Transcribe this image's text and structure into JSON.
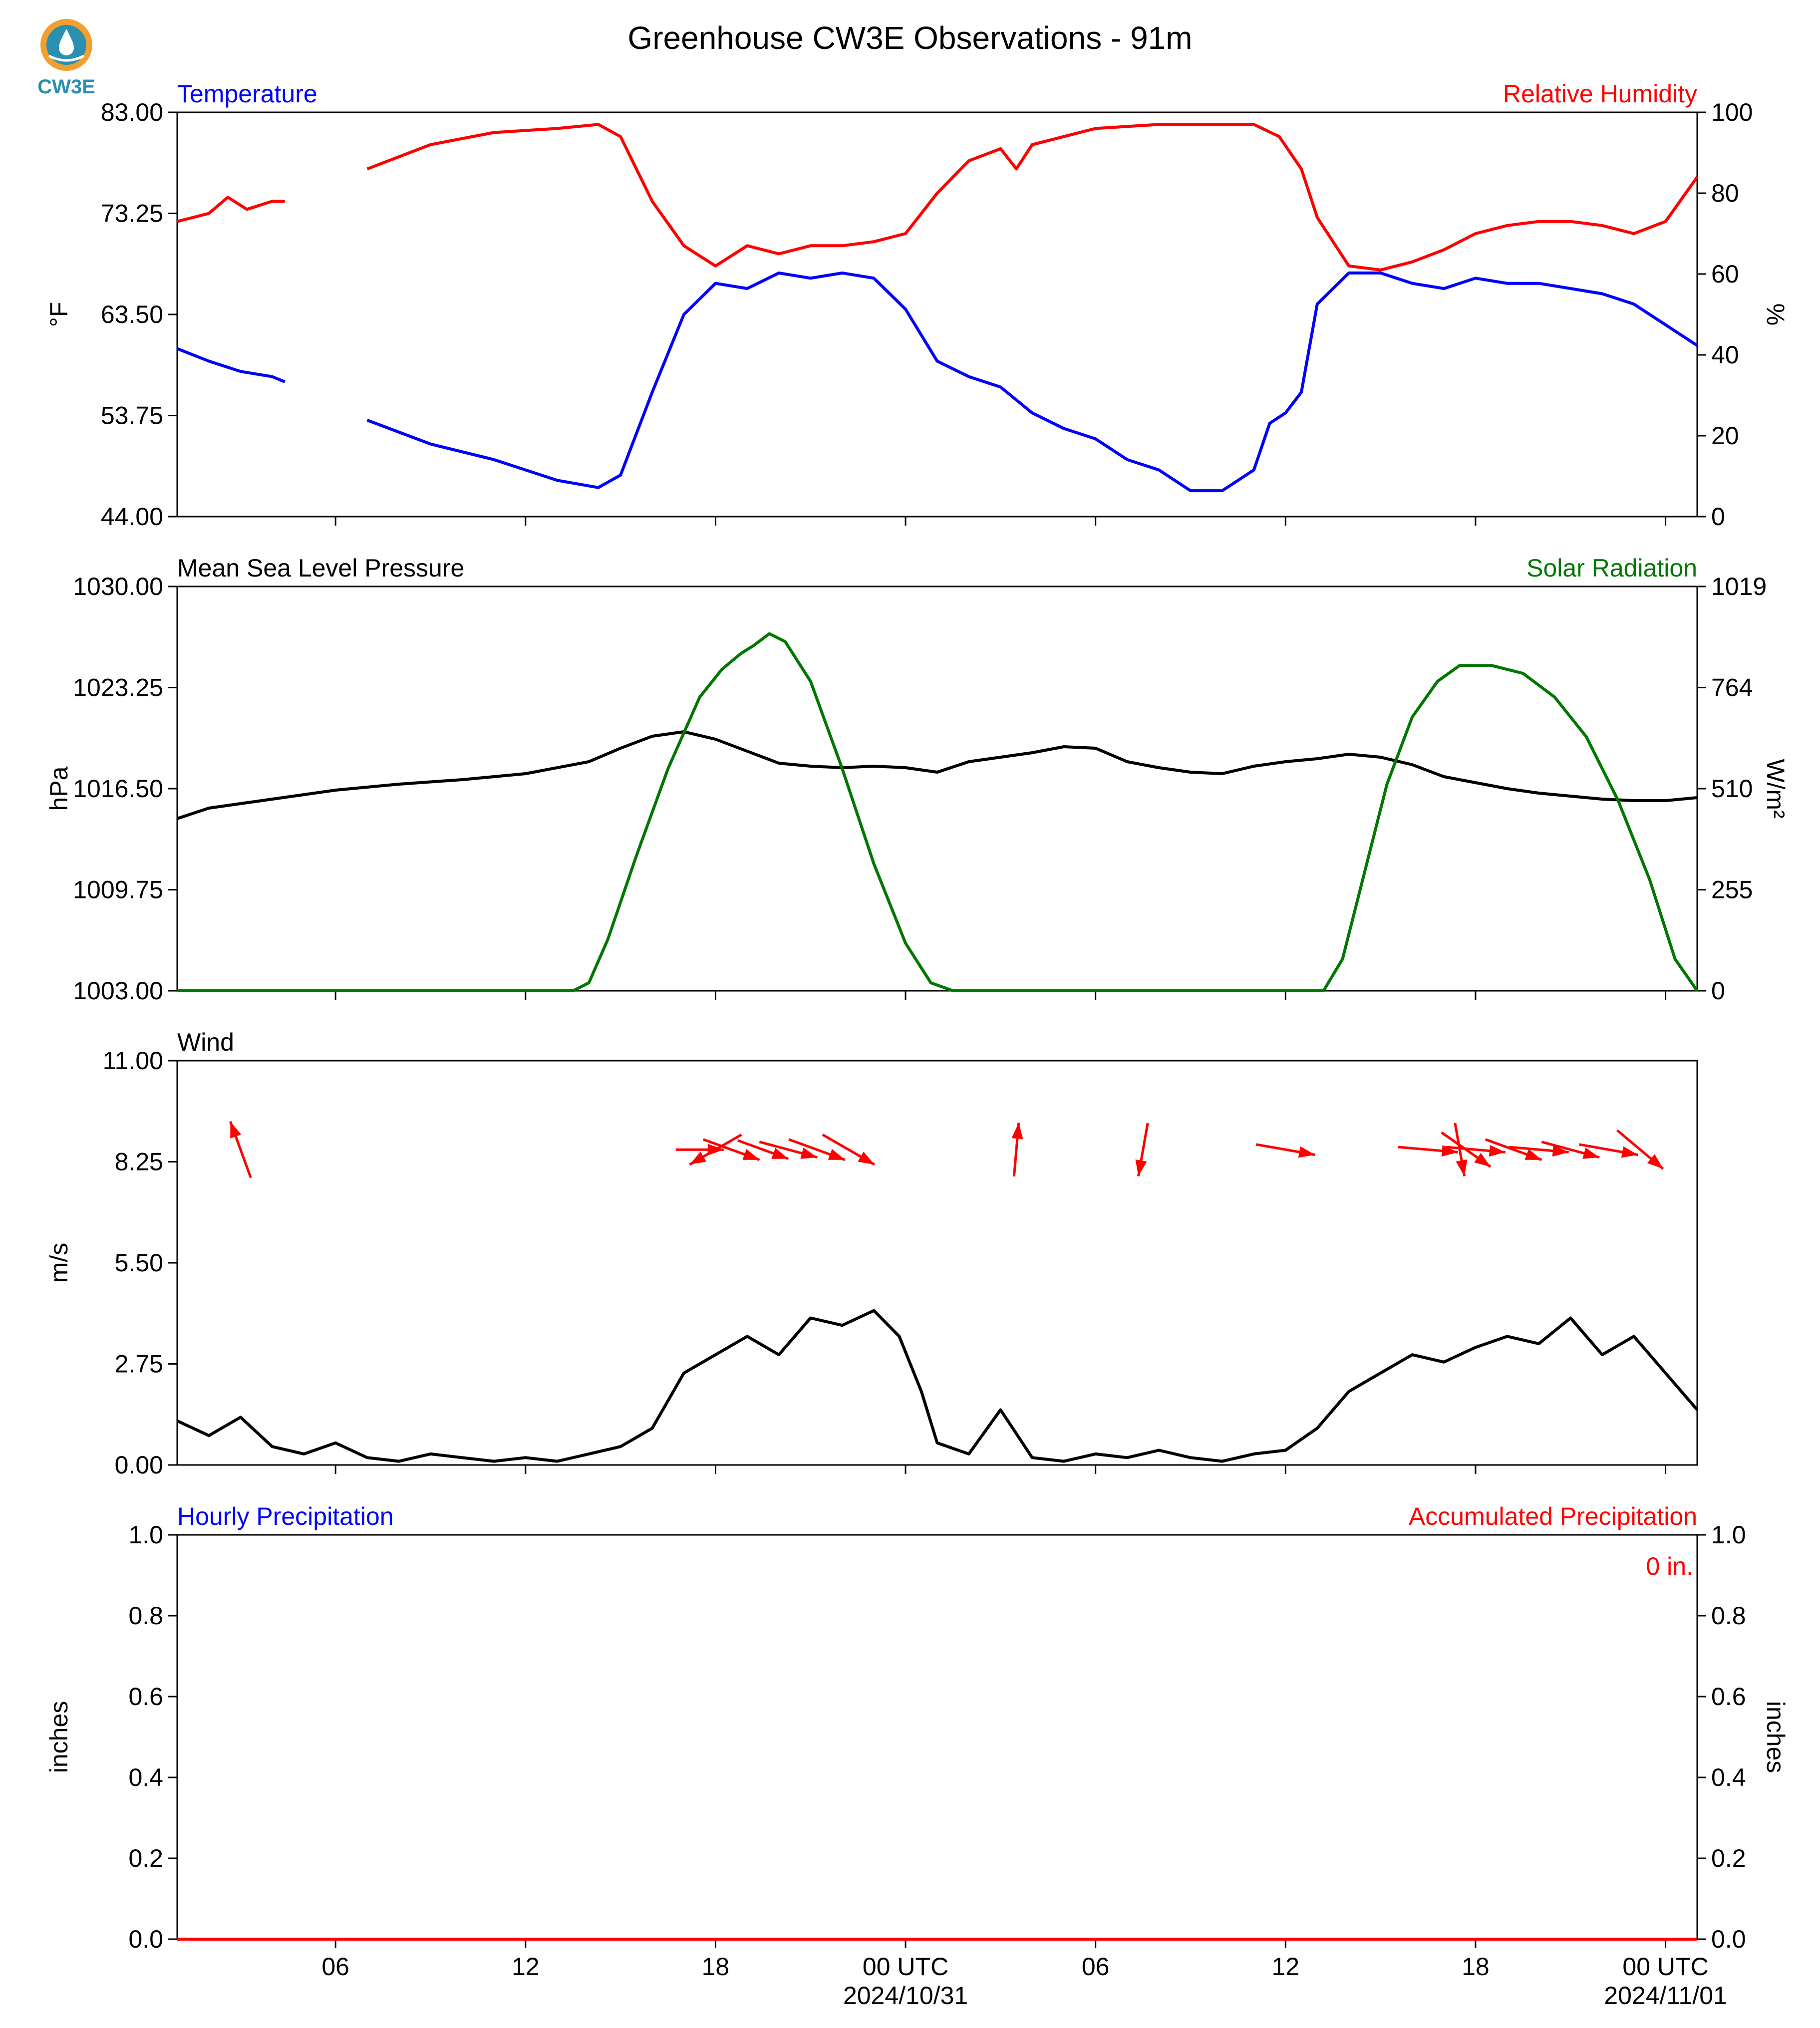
{
  "title": "Greenhouse CW3E Observations - 91m",
  "logo": {
    "text": "CW3E",
    "icon": "cw3e-droplet-logo-icon",
    "ring_color": "#f0a030",
    "text_color": "#2a8fb0"
  },
  "colors": {
    "blue": "#0000ff",
    "red": "#ff0000",
    "green": "#007700",
    "black": "#000000"
  },
  "x_axis": {
    "tick_hours": [
      6,
      12,
      18,
      24,
      30,
      36,
      42,
      48
    ],
    "tick_labels": [
      "06",
      "12",
      "18",
      "00 UTC",
      "06",
      "12",
      "18",
      "00 UTC"
    ],
    "date_labels": [
      {
        "hour": 24,
        "text": "2024/10/31"
      },
      {
        "hour": 48,
        "text": "2024/11/01"
      }
    ],
    "range_hours": [
      1,
      49
    ]
  },
  "chart_data": [
    {
      "type": "line",
      "left_title": "Temperature",
      "right_title": "Relative Humidity",
      "ylabel": "°F",
      "ylabel_right": "%",
      "ylim": [
        44.0,
        83.0
      ],
      "ylim_right": [
        0,
        100
      ],
      "yticks": [
        "83.00",
        "73.25",
        "63.50",
        "53.75",
        "44.00"
      ],
      "yticks_right": [
        "100",
        "80",
        "60",
        "40",
        "20",
        "0"
      ],
      "series": [
        {
          "name": "Temperature",
          "axis": "left",
          "color": "#0000ff",
          "x": [
            1.0,
            2.0,
            3.0,
            4.0,
            4.4,
            5.0,
            7.0,
            9.0,
            11.0,
            13.0,
            14.3,
            15.0,
            16.0,
            17.0,
            18.0,
            19.0,
            20.0,
            21.0,
            22.0,
            23.0,
            24.0,
            25.0,
            26.0,
            27.0,
            28.0,
            29.0,
            30.0,
            31.0,
            32.0,
            33.0,
            34.0,
            35.0,
            35.5,
            36.0,
            36.5,
            37.0,
            38.0,
            39.0,
            40.0,
            41.0,
            42.0,
            43.0,
            44.0,
            45.0,
            46.0,
            47.0,
            48.0,
            49.0
          ],
          "y": [
            60.2,
            59.0,
            58.0,
            57.5,
            57.0,
            null,
            53.3,
            51.0,
            49.5,
            47.5,
            46.8,
            48.0,
            56.0,
            63.5,
            66.5,
            66.0,
            67.5,
            67.0,
            67.5,
            67.0,
            64.0,
            59.0,
            57.5,
            56.5,
            54.0,
            52.5,
            51.5,
            49.5,
            48.5,
            46.5,
            46.5,
            48.5,
            53.0,
            54.0,
            56.0,
            64.5,
            67.5,
            67.5,
            66.5,
            66.0,
            67.0,
            66.5,
            66.5,
            66.0,
            65.5,
            64.5,
            62.5,
            60.5
          ]
        },
        {
          "name": "Relative Humidity",
          "axis": "right",
          "color": "#ff0000",
          "x": [
            1.0,
            2.0,
            2.6,
            3.2,
            4.0,
            4.4,
            5.0,
            7.0,
            9.0,
            11.0,
            13.0,
            14.3,
            15.0,
            16.0,
            17.0,
            18.0,
            19.0,
            20.0,
            21.0,
            22.0,
            23.0,
            24.0,
            25.0,
            26.0,
            27.0,
            27.5,
            28.0,
            30.0,
            32.0,
            34.0,
            35.0,
            35.8,
            36.5,
            37.0,
            38.0,
            39.0,
            40.0,
            41.0,
            42.0,
            43.0,
            44.0,
            45.0,
            46.0,
            47.0,
            48.0,
            49.0
          ],
          "y": [
            73,
            75,
            79,
            76,
            78,
            78,
            null,
            86,
            92,
            95,
            96,
            97,
            94,
            78,
            67,
            62,
            67,
            65,
            67,
            67,
            68,
            70,
            80,
            88,
            91,
            86,
            92,
            96,
            97,
            97,
            97,
            94,
            86,
            74,
            62,
            61,
            63,
            66,
            70,
            72,
            73,
            73,
            72,
            70,
            73,
            84
          ]
        }
      ]
    },
    {
      "type": "line",
      "left_title": "Mean Sea Level Pressure",
      "right_title": "Solar Radiation",
      "ylabel": "hPa",
      "ylabel_right": "W/m²",
      "ylim": [
        1003.0,
        1030.0
      ],
      "ylim_right": [
        0,
        1019
      ],
      "yticks": [
        "1030.00",
        "1023.25",
        "1016.50",
        "1009.75",
        "1003.00"
      ],
      "yticks_right": [
        "1019",
        "764",
        "510",
        "255",
        "0"
      ],
      "series": [
        {
          "name": "Mean Sea Level Pressure",
          "axis": "left",
          "color": "#000000",
          "x": [
            1,
            2,
            3,
            4,
            5,
            6,
            8,
            10,
            12,
            14,
            15,
            16,
            17,
            18,
            19,
            20,
            21,
            22,
            23,
            24,
            25,
            26,
            27,
            28,
            29,
            30,
            31,
            32,
            33,
            34,
            35,
            36,
            37,
            38,
            39,
            40,
            41,
            42,
            43,
            44,
            45,
            46,
            47,
            48,
            49
          ],
          "y": [
            1014.5,
            1015.2,
            1015.5,
            1015.8,
            1016.1,
            1016.4,
            1016.8,
            1017.1,
            1017.5,
            1018.3,
            1019.2,
            1020.0,
            1020.3,
            1019.8,
            1019.0,
            1018.2,
            1018.0,
            1017.9,
            1018.0,
            1017.9,
            1017.6,
            1018.3,
            1018.6,
            1018.9,
            1019.3,
            1019.2,
            1018.3,
            1017.9,
            1017.6,
            1017.5,
            1018.0,
            1018.3,
            1018.5,
            1018.8,
            1018.6,
            1018.1,
            1017.3,
            1016.9,
            1016.5,
            1016.2,
            1016.0,
            1015.8,
            1015.7,
            1015.7,
            1015.9
          ]
        },
        {
          "name": "Solar Radiation",
          "axis": "right",
          "color": "#007700",
          "x": [
            1,
            12,
            13.5,
            14,
            14.6,
            15.5,
            16.5,
            17.5,
            18.2,
            18.8,
            19.2,
            19.7,
            20.2,
            21,
            22,
            23,
            24,
            24.8,
            25.5,
            30,
            37.2,
            37.8,
            38.5,
            39.2,
            40,
            40.8,
            41.5,
            42.5,
            43.5,
            44.5,
            45.5,
            46.5,
            47.5,
            48.3,
            49
          ],
          "y": [
            0,
            0,
            0,
            20,
            130,
            340,
            560,
            740,
            810,
            850,
            870,
            900,
            880,
            780,
            560,
            320,
            120,
            20,
            0,
            0,
            0,
            80,
            300,
            520,
            690,
            780,
            820,
            820,
            800,
            740,
            640,
            480,
            280,
            80,
            0
          ]
        }
      ]
    },
    {
      "type": "line",
      "left_title": "Wind",
      "ylabel": "m/s",
      "ylim": [
        0.0,
        11.0
      ],
      "yticks": [
        "11.00",
        "8.25",
        "5.50",
        "2.75",
        "0.00"
      ],
      "series": [
        {
          "name": "Wind",
          "axis": "left",
          "color": "#000000",
          "x": [
            1,
            2,
            3,
            4,
            5,
            6,
            7,
            8,
            9,
            10,
            11,
            12,
            13,
            14,
            15,
            16,
            17,
            18,
            19,
            20,
            21,
            22,
            23,
            23.8,
            24.5,
            25,
            26,
            27,
            28,
            29,
            30,
            31,
            32,
            33,
            34,
            35,
            36,
            37,
            38,
            39,
            40,
            41,
            42,
            43,
            44,
            45,
            46,
            47,
            48,
            49
          ],
          "y": [
            1.2,
            0.8,
            1.3,
            0.5,
            0.3,
            0.6,
            0.2,
            0.1,
            0.3,
            0.2,
            0.1,
            0.2,
            0.1,
            0.3,
            0.5,
            1.0,
            2.5,
            3.0,
            3.5,
            3.0,
            4.0,
            3.8,
            4.2,
            3.5,
            2.0,
            0.6,
            0.3,
            1.5,
            0.2,
            0.1,
            0.3,
            0.2,
            0.4,
            0.2,
            0.1,
            0.3,
            0.4,
            1.0,
            2.0,
            2.5,
            3.0,
            2.8,
            3.2,
            3.5,
            3.3,
            4.0,
            3.0,
            3.5,
            2.5,
            1.5
          ]
        }
      ],
      "wind_arrows": [
        {
          "hour": 3.0,
          "dir_deg": 340,
          "length": 1.0
        },
        {
          "hour": 17.5,
          "dir_deg": 90,
          "length": 0.8
        },
        {
          "hour": 18.0,
          "dir_deg": 240,
          "length": 1.0
        },
        {
          "hour": 18.5,
          "dir_deg": 110,
          "length": 1.0
        },
        {
          "hour": 19.5,
          "dir_deg": 110,
          "length": 0.9
        },
        {
          "hour": 20.3,
          "dir_deg": 105,
          "length": 1.0
        },
        {
          "hour": 21.2,
          "dir_deg": 110,
          "length": 1.0
        },
        {
          "hour": 22.2,
          "dir_deg": 120,
          "length": 1.0
        },
        {
          "hour": 27.5,
          "dir_deg": 5,
          "length": 0.9
        },
        {
          "hour": 31.5,
          "dir_deg": 190,
          "length": 0.9
        },
        {
          "hour": 36.0,
          "dir_deg": 100,
          "length": 1.0
        },
        {
          "hour": 40.5,
          "dir_deg": 95,
          "length": 1.0
        },
        {
          "hour": 41.5,
          "dir_deg": 170,
          "length": 0.9
        },
        {
          "hour": 41.7,
          "dir_deg": 125,
          "length": 1.0
        },
        {
          "hour": 42.0,
          "dir_deg": 95,
          "length": 1.0
        },
        {
          "hour": 43.2,
          "dir_deg": 110,
          "length": 1.0
        },
        {
          "hour": 44.0,
          "dir_deg": 95,
          "length": 1.0
        },
        {
          "hour": 45.0,
          "dir_deg": 105,
          "length": 1.0
        },
        {
          "hour": 46.2,
          "dir_deg": 100,
          "length": 1.0
        },
        {
          "hour": 47.2,
          "dir_deg": 130,
          "length": 1.0
        }
      ]
    },
    {
      "type": "line",
      "left_title": "Hourly Precipitation",
      "right_title": "Accumulated Precipitation",
      "ylabel": "inches",
      "ylabel_right": "inches",
      "ylim": [
        0.0,
        1.0
      ],
      "ylim_right": [
        0.0,
        1.0
      ],
      "yticks": [
        "1.0",
        "0.8",
        "0.6",
        "0.4",
        "0.2",
        "0.0"
      ],
      "yticks_right": [
        "1.0",
        "0.8",
        "0.6",
        "0.4",
        "0.2",
        "0.0"
      ],
      "annotation": "0 in.",
      "series": [
        {
          "name": "Hourly Precipitation",
          "axis": "left",
          "color": "#0000ff",
          "x": [
            1,
            49
          ],
          "y": [
            0,
            0
          ]
        },
        {
          "name": "Accumulated Precipitation",
          "axis": "right",
          "color": "#ff0000",
          "x": [
            1,
            49
          ],
          "y": [
            0,
            0
          ]
        }
      ]
    }
  ]
}
